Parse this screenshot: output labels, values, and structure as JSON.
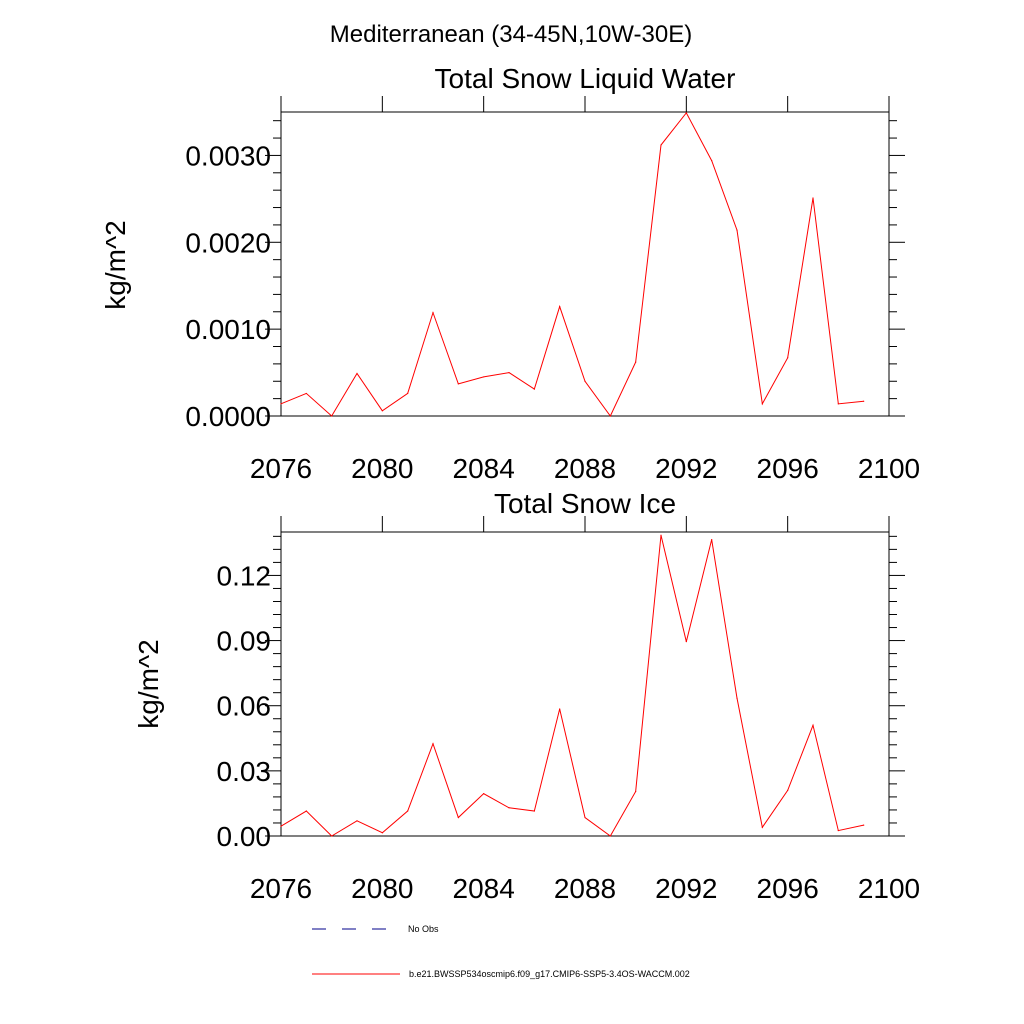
{
  "figure": {
    "title": "Mediterranean (34-45N,10W-30E)",
    "line_color": "#ff0000",
    "obs_color": "#00008b"
  },
  "legend": {
    "obs_label": "No Obs",
    "model_label": "b.e21.BWSSP534oscmip6.f09_g17.CMIP6-SSP5-3.4OS-WACCM.002",
    "placement": "bottom-left"
  },
  "chart_data": [
    {
      "type": "line",
      "title": "Total Snow Liquid Water",
      "xlabel": "",
      "ylabel": "kg/m^2",
      "xlim": [
        2076,
        2100
      ],
      "ylim": [
        0,
        0.0035
      ],
      "xticks": [
        2076,
        2080,
        2084,
        2088,
        2092,
        2096,
        2100
      ],
      "xtick_labels": [
        "2076",
        "2080",
        "2084",
        "2088",
        "2092",
        "2096",
        "2100"
      ],
      "yticks": [
        0,
        0.001,
        0.002,
        0.003
      ],
      "ytick_labels": [
        "0.0000",
        "0.0010",
        "0.0020",
        "0.0030"
      ],
      "grid": false,
      "series": [
        {
          "name": "b.e21.BWSSP534oscmip6.f09_g17.CMIP6-SSP5-3.4OS-WACCM.002",
          "x": [
            2076,
            2077,
            2078,
            2079,
            2080,
            2081,
            2082,
            2083,
            2084,
            2085,
            2086,
            2087,
            2088,
            2089,
            2090,
            2091,
            2092,
            2093,
            2094,
            2095,
            2096,
            2097,
            2098,
            2099
          ],
          "y": [
            0.00014,
            0.00026,
            0.0,
            0.00049,
            6e-05,
            0.00026,
            0.00119,
            0.00037,
            0.00045,
            0.0005,
            0.00031,
            0.00126,
            0.0004,
            0.0,
            0.00062,
            0.00312,
            0.00349,
            0.00294,
            0.00214,
            0.00014,
            0.00067,
            0.00251,
            0.00014,
            0.00017
          ]
        }
      ]
    },
    {
      "type": "line",
      "title": "Total Snow Ice",
      "xlabel": "",
      "ylabel": "kg/m^2",
      "xlim": [
        2076,
        2100
      ],
      "ylim": [
        0,
        0.14
      ],
      "xticks": [
        2076,
        2080,
        2084,
        2088,
        2092,
        2096,
        2100
      ],
      "xtick_labels": [
        "2076",
        "2080",
        "2084",
        "2088",
        "2092",
        "2096",
        "2100"
      ],
      "yticks": [
        0,
        0.03,
        0.06,
        0.09,
        0.12
      ],
      "ytick_labels": [
        "0.00",
        "0.03",
        "0.06",
        "0.09",
        "0.12"
      ],
      "grid": false,
      "series": [
        {
          "name": "b.e21.BWSSP534oscmip6.f09_g17.CMIP6-SSP5-3.4OS-WACCM.002",
          "x": [
            2076,
            2077,
            2078,
            2079,
            2080,
            2081,
            2082,
            2083,
            2084,
            2085,
            2086,
            2087,
            2088,
            2089,
            2090,
            2091,
            2092,
            2093,
            2094,
            2095,
            2096,
            2097,
            2098,
            2099
          ],
          "y": [
            0.0045,
            0.0115,
            0.0,
            0.007,
            0.0015,
            0.0115,
            0.0425,
            0.0085,
            0.0195,
            0.013,
            0.0115,
            0.0585,
            0.0085,
            0.0,
            0.0205,
            0.1385,
            0.0895,
            0.1365,
            0.0635,
            0.004,
            0.021,
            0.051,
            0.0025,
            0.005
          ]
        }
      ]
    }
  ]
}
